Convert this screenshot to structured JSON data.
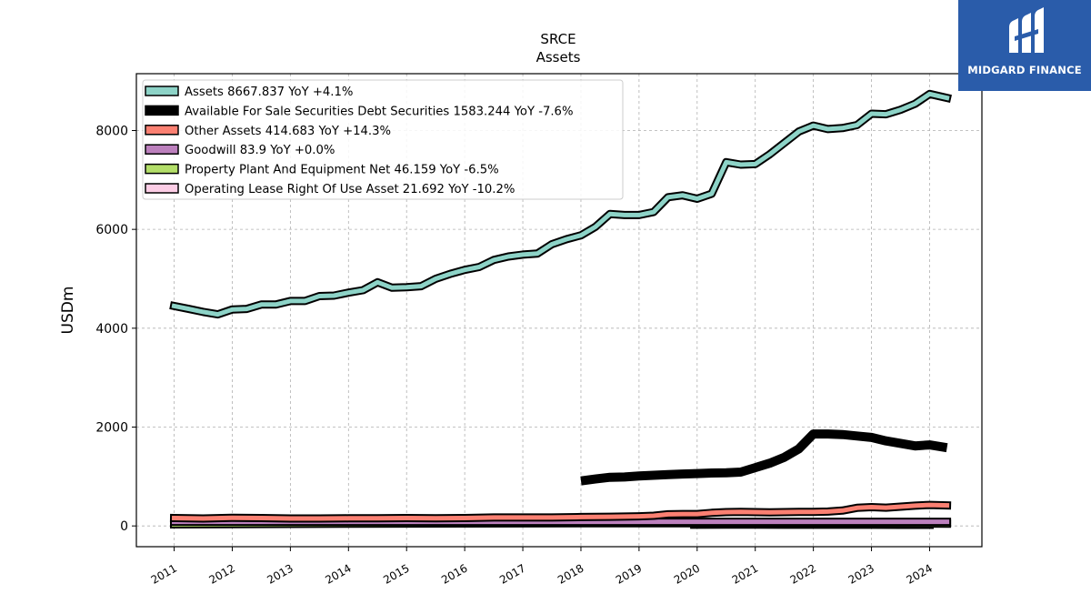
{
  "chart_data": {
    "type": "line",
    "title": "SRCE",
    "subtitle": "Assets",
    "xlabel": "",
    "ylabel": "USDm",
    "xlim": [
      2010.35,
      2024.9
    ],
    "ylim": [
      -420,
      9150
    ],
    "x_ticks": [
      "2011",
      "2012",
      "2013",
      "2014",
      "2015",
      "2016",
      "2017",
      "2018",
      "2019",
      "2020",
      "2021",
      "2022",
      "2023",
      "2024"
    ],
    "y_ticks": [
      0,
      2000,
      4000,
      6000,
      8000
    ],
    "grid": true,
    "legend_position": "top-left",
    "series": [
      {
        "name": "Assets",
        "legend": "Assets  8667.837 YoY +4.1%",
        "color": "#8dd3c7",
        "x": [
          2011.0,
          2011.25,
          2011.5,
          2011.75,
          2012.0,
          2012.25,
          2012.5,
          2012.75,
          2013.0,
          2013.25,
          2013.5,
          2013.75,
          2014.0,
          2014.25,
          2014.5,
          2014.75,
          2015.0,
          2015.25,
          2015.5,
          2015.75,
          2016.0,
          2016.25,
          2016.5,
          2016.75,
          2017.0,
          2017.25,
          2017.5,
          2017.75,
          2018.0,
          2018.25,
          2018.5,
          2018.75,
          2019.0,
          2019.25,
          2019.5,
          2019.75,
          2020.0,
          2020.25,
          2020.5,
          2020.75,
          2021.0,
          2021.25,
          2021.5,
          2021.75,
          2022.0,
          2022.25,
          2022.5,
          2022.75,
          2023.0,
          2023.25,
          2023.5,
          2023.75,
          2024.0,
          2024.3
        ],
        "values": [
          4450,
          4390,
          4330,
          4280,
          4380,
          4390,
          4480,
          4480,
          4550,
          4550,
          4650,
          4660,
          4720,
          4770,
          4930,
          4820,
          4830,
          4850,
          5000,
          5100,
          5180,
          5240,
          5380,
          5450,
          5490,
          5510,
          5700,
          5800,
          5880,
          6050,
          6310,
          6290,
          6290,
          6350,
          6650,
          6690,
          6620,
          6720,
          7360,
          7310,
          7320,
          7520,
          7750,
          7980,
          8100,
          8030,
          8050,
          8110,
          8340,
          8330,
          8420,
          8540,
          8740,
          8660
        ]
      },
      {
        "name": "Available For Sale Securities Debt Securities",
        "legend": "Available For Sale Securities Debt Securities  1583.244 YoY -7.6%",
        "color": "#000000",
        "x": [
          2018.0,
          2018.25,
          2018.5,
          2018.75,
          2019.0,
          2019.25,
          2019.5,
          2019.75,
          2020.0,
          2020.25,
          2020.5,
          2020.75,
          2021.0,
          2021.25,
          2021.5,
          2021.75,
          2022.0,
          2022.25,
          2022.5,
          2022.75,
          2023.0,
          2023.25,
          2023.5,
          2023.75,
          2024.0,
          2024.3
        ],
        "values": [
          910,
          950,
          985,
          990,
          1010,
          1025,
          1040,
          1050,
          1060,
          1070,
          1075,
          1090,
          1180,
          1270,
          1390,
          1560,
          1860,
          1860,
          1850,
          1820,
          1790,
          1720,
          1670,
          1620,
          1640,
          1583
        ]
      },
      {
        "name": "Other Assets",
        "legend": "Other Assets  414.683 YoY +14.3%",
        "color": "#fb8072",
        "x": [
          2011.0,
          2011.5,
          2012.0,
          2012.5,
          2013.0,
          2013.5,
          2014.0,
          2014.5,
          2015.0,
          2015.5,
          2016.0,
          2016.5,
          2017.0,
          2017.5,
          2018.0,
          2018.5,
          2019.0,
          2019.25,
          2019.5,
          2019.75,
          2020.0,
          2020.25,
          2020.5,
          2020.75,
          2021.0,
          2021.25,
          2021.5,
          2021.75,
          2022.0,
          2022.25,
          2022.5,
          2022.75,
          2023.0,
          2023.25,
          2023.5,
          2023.75,
          2024.0,
          2024.3
        ],
        "values": [
          160,
          150,
          165,
          160,
          150,
          150,
          155,
          155,
          160,
          155,
          160,
          170,
          170,
          170,
          180,
          185,
          195,
          205,
          235,
          240,
          240,
          265,
          280,
          285,
          280,
          275,
          280,
          285,
          285,
          290,
          310,
          365,
          380,
          370,
          390,
          410,
          425,
          415
        ]
      },
      {
        "name": "Goodwill",
        "legend": "Goodwill  83.9 YoY +0.0%",
        "color": "#bc80bd",
        "x": [
          2011.0,
          2014.0,
          2017.0,
          2020.0,
          2023.0,
          2024.3
        ],
        "values": [
          84,
          84,
          84,
          84,
          84,
          84
        ]
      },
      {
        "name": "Property Plant And Equipment Net",
        "legend": "Property Plant And Equipment Net  46.159 YoY -6.5%",
        "color": "#b3de69",
        "x": [
          2011.0,
          2012.0,
          2013.0,
          2014.0,
          2015.0,
          2016.0,
          2017.0,
          2018.0,
          2019.0,
          2019.75,
          2020.0,
          2021.0,
          2022.0,
          2023.0,
          2024.0,
          2024.3
        ],
        "values": [
          30,
          35,
          40,
          45,
          48,
          50,
          52,
          54,
          55,
          55,
          55,
          54,
          52,
          50,
          48,
          46
        ]
      },
      {
        "name": "Operating Lease Right Of Use Asset",
        "legend": "Operating Lease Right Of Use Asset  21.692 YoY -10.2%",
        "color": "#fccde5",
        "x": [
          2019.95,
          2020.5,
          2021.0,
          2021.5,
          2022.0,
          2022.5,
          2023.0,
          2023.5,
          2024.0
        ],
        "values": [
          23,
          25,
          25,
          24,
          24,
          23,
          23,
          22,
          22
        ]
      }
    ]
  },
  "brand": {
    "name": "MIDGARD FINANCE",
    "background": "#2a5caa",
    "icon": "midgard-logo-icon"
  }
}
